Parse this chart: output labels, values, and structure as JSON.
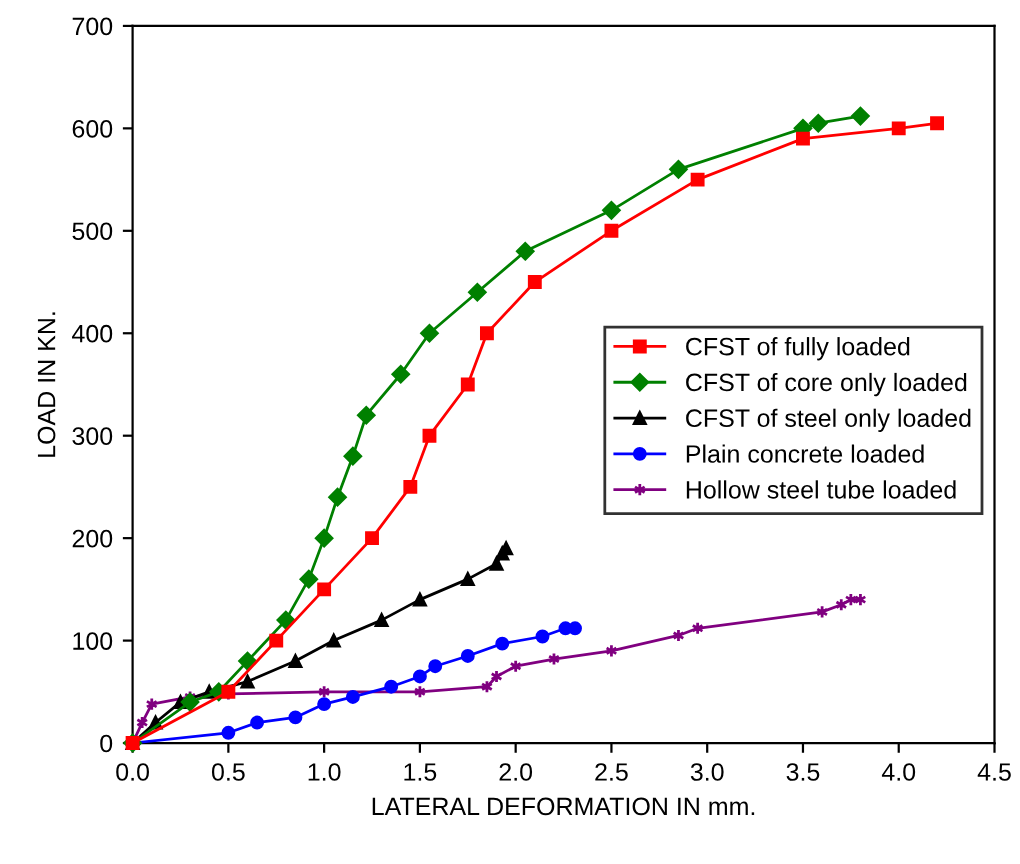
{
  "chart_data": {
    "type": "line",
    "xlabel": "LATERAL DEFORMATION IN mm.",
    "ylabel": "LOAD IN KN.",
    "xlim": [
      0,
      4.5
    ],
    "xticks": [
      {
        "value": 0,
        "label": "0.0"
      },
      {
        "value": 0.5,
        "label": "0.5"
      },
      {
        "value": 1,
        "label": "1.0"
      },
      {
        "value": 1.5,
        "label": "1.5"
      },
      {
        "value": 2,
        "label": "2.0"
      },
      {
        "value": 2.5,
        "label": "2.5"
      },
      {
        "value": 3,
        "label": "3.0"
      },
      {
        "value": 3.5,
        "label": "3.5"
      },
      {
        "value": 4,
        "label": "4.0"
      },
      {
        "value": 4.5,
        "label": "4.5"
      }
    ],
    "ylim": [
      0,
      700
    ],
    "yticks": [
      0,
      100,
      200,
      300,
      400,
      500,
      600,
      700
    ],
    "grid": false,
    "legend": "right",
    "series": [
      {
        "name": "CFST of fully loaded",
        "color": "#ff0000",
        "marker": "square",
        "x": [
          0,
          0.5,
          0.75,
          1.0,
          1.25,
          1.45,
          1.55,
          1.75,
          1.85,
          2.1,
          2.5,
          2.95,
          3.5,
          4.0,
          4.2
        ],
        "values": [
          0,
          50,
          100,
          150,
          200,
          250,
          300,
          350,
          400,
          450,
          500,
          550,
          590,
          600,
          605
        ]
      },
      {
        "name": "CFST of core only loaded",
        "color": "#008000",
        "marker": "diamond",
        "x": [
          0,
          0.3,
          0.45,
          0.6,
          0.8,
          0.92,
          1.0,
          1.07,
          1.15,
          1.22,
          1.4,
          1.55,
          1.8,
          2.05,
          2.5,
          2.85,
          3.5,
          3.58,
          3.8
        ],
        "values": [
          0,
          40,
          50,
          80,
          120,
          160,
          200,
          240,
          280,
          320,
          360,
          400,
          440,
          480,
          520,
          560,
          600,
          605,
          612
        ]
      },
      {
        "name": "CFST of steel only loaded",
        "color": "#000000",
        "marker": "triangle",
        "x": [
          0,
          0.12,
          0.25,
          0.4,
          0.6,
          0.85,
          1.05,
          1.3,
          1.5,
          1.75,
          1.9,
          1.93,
          1.95
        ],
        "values": [
          0,
          20,
          40,
          50,
          60,
          80,
          100,
          120,
          140,
          160,
          175,
          185,
          190
        ]
      },
      {
        "name": "Plain concrete loaded",
        "color": "#0000ff",
        "marker": "circle",
        "x": [
          0,
          0.5,
          0.65,
          0.85,
          1.0,
          1.15,
          1.35,
          1.5,
          1.58,
          1.75,
          1.93,
          2.14,
          2.26,
          2.31
        ],
        "values": [
          0,
          10,
          20,
          25,
          38,
          45,
          55,
          65,
          75,
          85,
          97,
          104,
          112,
          112
        ]
      },
      {
        "name": "Hollow steel tube loaded",
        "color": "#800080",
        "marker": "cross",
        "x": [
          0,
          0.05,
          0.1,
          0.3,
          0.5,
          1.0,
          1.5,
          1.85,
          1.9,
          2.0,
          2.2,
          2.5,
          2.85,
          2.95,
          3.6,
          3.7,
          3.75,
          3.8
        ],
        "values": [
          0,
          20,
          38,
          45,
          48,
          50,
          50,
          55,
          65,
          75,
          82,
          90,
          105,
          112,
          128,
          135,
          140,
          140
        ]
      }
    ]
  }
}
